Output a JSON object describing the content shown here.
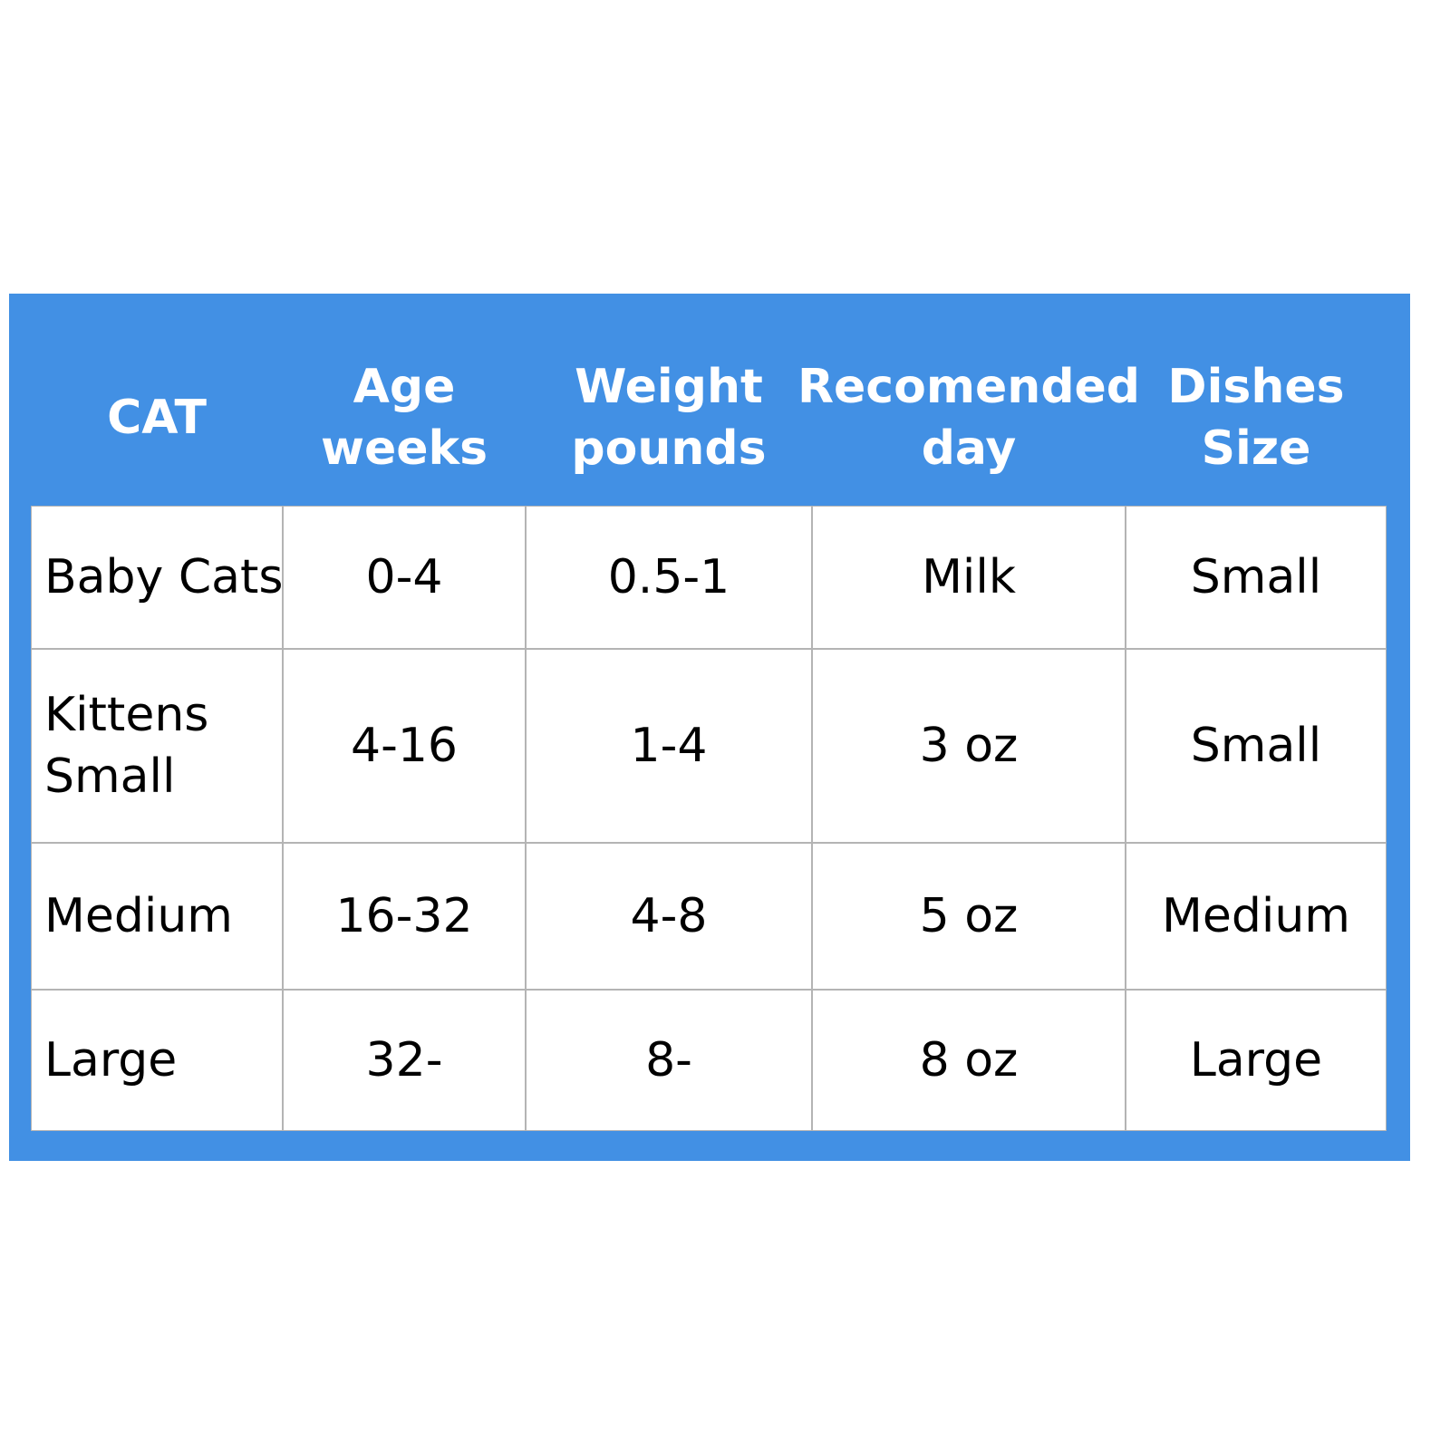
{
  "table": {
    "headers": [
      [
        "CAT"
      ],
      [
        "Age",
        "weeks"
      ],
      [
        "Weight",
        "pounds"
      ],
      [
        "Recomended",
        "day"
      ],
      [
        "Dishes",
        "Size"
      ]
    ],
    "rows": [
      [
        [
          "Baby Cats"
        ],
        [
          "0-4"
        ],
        [
          "0.5-1"
        ],
        [
          "Milk"
        ],
        [
          "Small"
        ]
      ],
      [
        [
          "Kittens",
          "Small"
        ],
        [
          "4-16"
        ],
        [
          "1-4"
        ],
        [
          "3 oz"
        ],
        [
          "Small"
        ]
      ],
      [
        [
          "Medium"
        ],
        [
          "16-32"
        ],
        [
          "4-8"
        ],
        [
          "5 oz"
        ],
        [
          "Medium"
        ]
      ],
      [
        [
          "Large"
        ],
        [
          "32-"
        ],
        [
          "8-"
        ],
        [
          "8 oz"
        ],
        [
          "Large"
        ]
      ]
    ]
  }
}
